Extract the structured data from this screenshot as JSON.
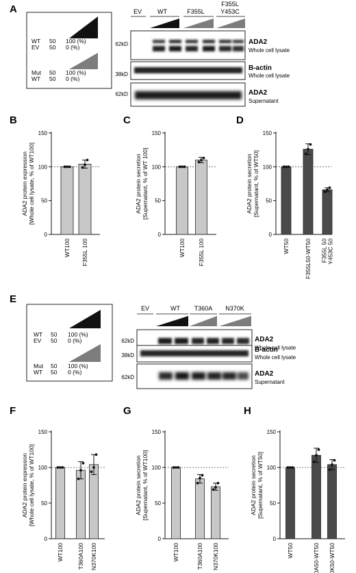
{
  "panels": {
    "A": {
      "letter": "A",
      "legend": {
        "row1_label": "WT",
        "row1_v1": "50",
        "row1_v2": "100 (%)",
        "row2_label": "EV",
        "row2_v1": "50",
        "row2_v2": "0   (%)",
        "row3_label": "Mut",
        "row3_v1": "50",
        "row3_v2": "100 (%)",
        "row4_label": "WT",
        "row4_v1": "50",
        "row4_v2": "0   (%)"
      },
      "lanes": {
        "ev": "EV",
        "wt": "WT",
        "mut1": "F355L",
        "mut2_l1": "F355L",
        "mut2_l2": "Y453C"
      },
      "blots": [
        {
          "mw": "62kD",
          "name": "ADA2",
          "sub": "Whole cell lysate"
        },
        {
          "mw": "38kD",
          "name": "B-actin",
          "sub": "Whole cell lysate"
        },
        {
          "mw": "62kD",
          "name": "ADA2",
          "sub": "Supernatant"
        }
      ]
    },
    "E": {
      "letter": "E",
      "legend": {
        "row1_label": "WT",
        "row1_v1": "50",
        "row1_v2": "100 (%)",
        "row2_label": "EV",
        "row2_v1": "50",
        "row2_v2": "0   (%)",
        "row3_label": "Mut",
        "row3_v1": "50",
        "row3_v2": "100 (%)",
        "row4_label": "WT",
        "row4_v1": "50",
        "row4_v2": "0   (%)"
      },
      "lanes": {
        "ev": "EV",
        "wt": "WT",
        "mut1": "T360A",
        "mut2": "N370K"
      },
      "blots": [
        {
          "mw": "62kD",
          "name": "ADA2",
          "sub": "Whole cell lysate"
        },
        {
          "mw": "38kD",
          "name": "B-actin",
          "sub": "Whole cell lysate"
        },
        {
          "mw": "62kD",
          "name": "ADA2",
          "sub": "Supernatant"
        }
      ]
    }
  },
  "chart_data": [
    {
      "panel": "B",
      "type": "bar",
      "bar_color": "#c8c8c8",
      "categories": [
        "WT100",
        "F355L 100"
      ],
      "values": [
        100,
        104
      ],
      "errors": [
        0,
        6
      ],
      "points": [
        [
          100,
          100,
          100
        ],
        [
          99,
          103,
          110
        ]
      ],
      "ylabel_l1": "ADA2 protein expression",
      "ylabel_l2": "[Whole cell lysate, % of WT100]",
      "ylim": [
        0,
        150
      ],
      "yticks": [
        0,
        50,
        100,
        150
      ],
      "reference_line": 100
    },
    {
      "panel": "C",
      "type": "bar",
      "bar_color": "#c8c8c8",
      "categories": [
        "WT100",
        "F355L 100"
      ],
      "values": [
        100,
        110
      ],
      "errors": [
        0,
        4
      ],
      "points": [
        [
          100,
          100,
          100
        ],
        [
          107,
          110,
          113
        ]
      ],
      "ylabel_l1": "ADA2 protein secretion",
      "ylabel_l2": "[Supernatant, % of WT 100]",
      "ylim": [
        0,
        150
      ],
      "yticks": [
        0,
        50,
        100,
        150
      ],
      "reference_line": 100
    },
    {
      "panel": "D",
      "type": "bar",
      "bar_color": "#4a4a4a",
      "categories": [
        "WT50",
        "F355L50-WT50",
        "F355L 50\nY453C 50"
      ],
      "values": [
        100,
        126,
        66
      ],
      "errors": [
        0,
        8,
        3
      ],
      "points": [
        [
          100,
          100,
          100
        ],
        [
          119,
          126,
          133
        ],
        [
          63,
          66,
          69
        ]
      ],
      "ylabel_l1": "ADA2 protein secretion",
      "ylabel_l2": "[Supernatant, % of WT50]",
      "ylim": [
        0,
        150
      ],
      "yticks": [
        0,
        50,
        100,
        150
      ],
      "reference_line": 100
    },
    {
      "panel": "F",
      "type": "bar",
      "bar_color": "#c8c8c8",
      "categories": [
        "WT100",
        "T360A100",
        "N370K100"
      ],
      "values": [
        100,
        96,
        104
      ],
      "errors": [
        0,
        12,
        14
      ],
      "points": [
        [
          100,
          100,
          100
        ],
        [
          84,
          96,
          106
        ],
        [
          94,
          100,
          118
        ]
      ],
      "ylabel_l1": "ADA2 protein expression",
      "ylabel_l2": "[Whole cell lysate, % of WT100]",
      "ylim": [
        0,
        150
      ],
      "yticks": [
        0,
        50,
        100,
        150
      ],
      "reference_line": 100
    },
    {
      "panel": "G",
      "type": "bar",
      "bar_color": "#c8c8c8",
      "categories": [
        "WT100",
        "T360A100",
        "N370K100"
      ],
      "values": [
        100,
        84,
        73
      ],
      "errors": [
        0,
        6,
        5
      ],
      "points": [
        [
          100,
          100,
          100
        ],
        [
          78,
          85,
          89
        ],
        [
          69,
          72,
          78
        ]
      ],
      "ylabel_l1": "ADA2 protein secretion",
      "ylabel_l2": "[Supernatant, % of WT100]",
      "ylim": [
        0,
        150
      ],
      "yticks": [
        0,
        50,
        100,
        150
      ],
      "reference_line": 100
    },
    {
      "panel": "H",
      "type": "bar",
      "bar_color": "#4a4a4a",
      "categories": [
        "WT50",
        "T360A50-WT50",
        "N370K50-WT50"
      ],
      "values": [
        100,
        117,
        104
      ],
      "errors": [
        0,
        10,
        7
      ],
      "points": [
        [
          100,
          100,
          100
        ],
        [
          108,
          117,
          125
        ],
        [
          97,
          104,
          110
        ]
      ],
      "ylabel_l1": "ADA2 protein secretion",
      "ylabel_l2": "[Supernatant, % of WT50]",
      "ylim": [
        0,
        150
      ],
      "yticks": [
        0,
        50,
        100,
        150
      ],
      "reference_line": 100
    }
  ]
}
